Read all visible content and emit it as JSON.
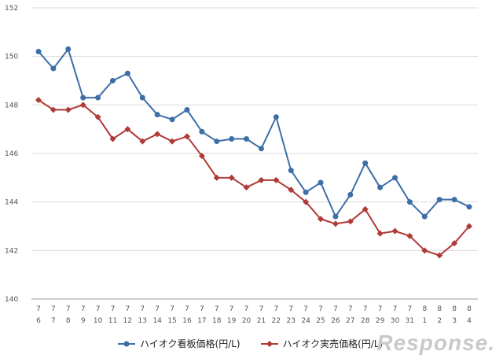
{
  "chart_data": {
    "type": "line",
    "title": "",
    "xlabel": "",
    "ylabel": "",
    "ylim": [
      140,
      152
    ],
    "yticks": [
      140,
      142,
      144,
      146,
      148,
      150,
      152
    ],
    "grid": true,
    "legend_position": "bottom",
    "categories": [
      {
        "month": "7",
        "day": "6"
      },
      {
        "month": "7",
        "day": "7"
      },
      {
        "month": "7",
        "day": "8"
      },
      {
        "month": "7",
        "day": "9"
      },
      {
        "month": "7",
        "day": "10"
      },
      {
        "month": "7",
        "day": "11"
      },
      {
        "month": "7",
        "day": "12"
      },
      {
        "month": "7",
        "day": "13"
      },
      {
        "month": "7",
        "day": "14"
      },
      {
        "month": "7",
        "day": "15"
      },
      {
        "month": "7",
        "day": "16"
      },
      {
        "month": "7",
        "day": "17"
      },
      {
        "month": "7",
        "day": "18"
      },
      {
        "month": "7",
        "day": "19"
      },
      {
        "month": "7",
        "day": "20"
      },
      {
        "month": "7",
        "day": "21"
      },
      {
        "month": "7",
        "day": "22"
      },
      {
        "month": "7",
        "day": "23"
      },
      {
        "month": "7",
        "day": "24"
      },
      {
        "month": "7",
        "day": "25"
      },
      {
        "month": "7",
        "day": "26"
      },
      {
        "month": "7",
        "day": "27"
      },
      {
        "month": "7",
        "day": "28"
      },
      {
        "month": "7",
        "day": "29"
      },
      {
        "month": "7",
        "day": "30"
      },
      {
        "month": "7",
        "day": "31"
      },
      {
        "month": "8",
        "day": "1"
      },
      {
        "month": "8",
        "day": "2"
      },
      {
        "month": "8",
        "day": "3"
      },
      {
        "month": "8",
        "day": "4"
      }
    ],
    "series": [
      {
        "name": "ハイオク看板価格(円/L)",
        "color": "#3d6ea8",
        "marker": "circle",
        "values": [
          150.2,
          149.5,
          150.3,
          148.3,
          148.3,
          149.0,
          149.3,
          148.3,
          147.6,
          147.4,
          147.8,
          146.9,
          146.5,
          146.6,
          146.6,
          146.2,
          147.5,
          145.3,
          144.4,
          144.8,
          143.4,
          144.3,
          145.6,
          144.6,
          145.0,
          144.0,
          143.4,
          144.1,
          144.1,
          143.8
        ]
      },
      {
        "name": "ハイオク実売価格(円/L)",
        "color": "#b03a36",
        "marker": "diamond",
        "values": [
          148.2,
          147.8,
          147.8,
          148.0,
          147.5,
          146.6,
          147.0,
          146.5,
          146.8,
          146.5,
          146.7,
          145.9,
          145.0,
          145.0,
          144.6,
          144.9,
          144.9,
          144.5,
          144.0,
          143.3,
          143.1,
          143.2,
          143.7,
          142.7,
          142.8,
          142.6,
          142.0,
          141.8,
          142.3,
          143.0
        ]
      }
    ]
  },
  "watermark": "Response."
}
